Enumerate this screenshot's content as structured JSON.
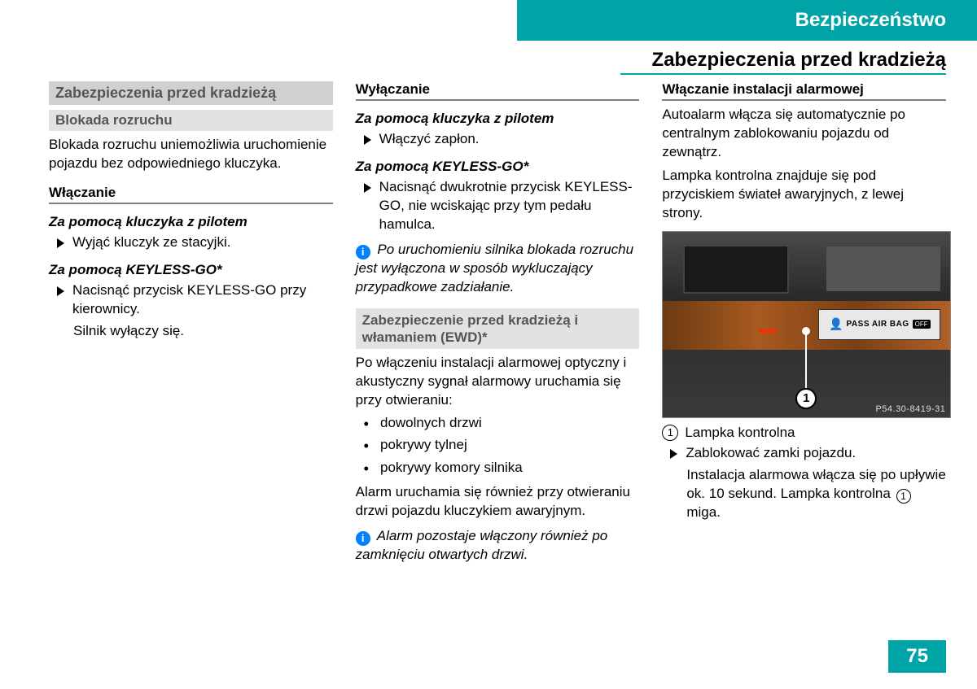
{
  "header": {
    "chapter": "Bezpieczeństwo",
    "section": "Zabezpieczenia przed kradzieżą"
  },
  "col1": {
    "h1": "Zabezpieczenia przed kradzieżą",
    "h2": "Blokada rozruchu",
    "p1": "Blokada rozruchu uniemożliwia uruchomienie pojazdu bez odpowiedniego kluczyka.",
    "sub1": "Włączanie",
    "ib1": "Za pomocą kluczyka z pilotem",
    "b1": "Wyjąć kluczyk ze stacyjki.",
    "ib2": "Za pomocą KEYLESS-GO*",
    "b2": "Nacisnąć przycisk KEYLESS-GO przy kierownicy.",
    "b2a": "Silnik wyłączy się."
  },
  "col2": {
    "sub1": "Wyłączanie",
    "ib1": "Za pomocą kluczyka z pilotem",
    "b1": "Włączyć zapłon.",
    "ib2": "Za pomocą KEYLESS-GO*",
    "b2": "Nacisnąć dwukrotnie przycisk KEYLESS-GO, nie wciskając przy tym pedału hamulca.",
    "note1": "Po uruchomieniu silnika blokada rozruchu jest wyłączona w sposób wykluczający przypadkowe zadziałanie.",
    "h3": "Zabezpieczenie przed kradzieżą i włamaniem (EWD)*",
    "p2": "Po włączeniu instalacji alarmowej optyczny i akustyczny sygnał alarmowy uruchamia się przy otwieraniu:",
    "d1": "dowolnych drzwi",
    "d2": "pokrywy tylnej",
    "d3": "pokrywy komory silnika",
    "p3": "Alarm uruchamia się również przy otwieraniu drzwi pojazdu kluczykiem awaryjnym.",
    "note2": "Alarm pozostaje włączony również po zamknięciu otwartych drzwi."
  },
  "col3": {
    "sub1": "Włączanie instalacji alarmowej",
    "p1": "Autoalarm włącza się automatycznie po centralnym zablokowaniu pojazdu od zewnątrz.",
    "p2": "Lampka kontrolna znajduje się pod przyciskiem świateł awaryjnych, z lewej strony.",
    "img_code": "P54.30-8419-31",
    "callout": "1",
    "airbag_text": "PASS AIR BAG",
    "airbag_off": "OFF",
    "legend1": "Lampka kontrolna",
    "b1": "Zablokować zamki pojazdu.",
    "b1a_pre": "Instalacja alarmowa włącza się po upływie ok. 10 sekund. Lampka kontrolna ",
    "b1a_num": "1",
    "b1a_post": " miga."
  },
  "page": "75"
}
